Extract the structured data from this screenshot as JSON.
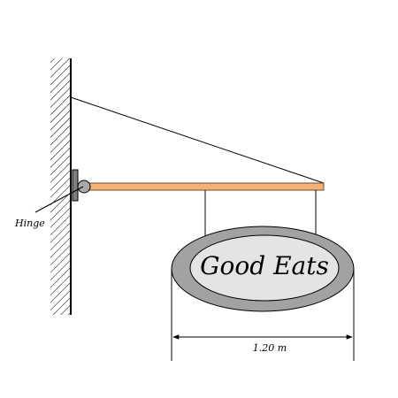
{
  "diagram": {
    "sign_text": "Good Eats",
    "hinge_label": "Hinge",
    "width_label": "1.20 m"
  },
  "colors": {
    "beam_fill": "#F6B177",
    "beam_stroke": "#6A4A2A",
    "sign_rim": "#A2A2A2",
    "sign_face": "#E4E4E4",
    "hinge_ball": "#A9A9A9",
    "line": "#000000"
  }
}
